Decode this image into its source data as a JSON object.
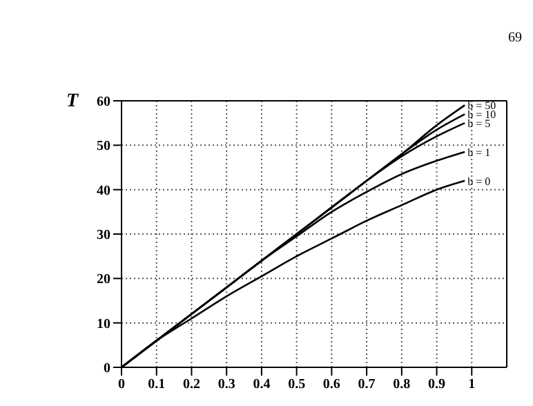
{
  "chart_data": {
    "type": "line",
    "ylabel": "T",
    "annotations": [
      "69"
    ],
    "x": [
      0,
      0.1,
      0.2,
      0.3,
      0.4,
      0.5,
      0.6,
      0.7,
      0.8,
      0.9,
      0.98
    ],
    "series": [
      {
        "name": "b = 50",
        "color": "#000000",
        "values": [
          0,
          6,
          12,
          18,
          24,
          30,
          36,
          42,
          48,
          54.5,
          59
        ]
      },
      {
        "name": "b = 10",
        "color": "#000000",
        "values": [
          0,
          6,
          12,
          18,
          24,
          30,
          36,
          42,
          48,
          53.5,
          57
        ]
      },
      {
        "name": "b = 5",
        "color": "#000000",
        "values": [
          0,
          6,
          12,
          18,
          24,
          30,
          36,
          42,
          47.5,
          52,
          55
        ]
      },
      {
        "name": "b = 1",
        "color": "#000000",
        "values": [
          0,
          6,
          12,
          18,
          24,
          29.5,
          35,
          39.5,
          43.5,
          46.5,
          48.5
        ]
      },
      {
        "name": "b = 0",
        "color": "#000000",
        "values": [
          0,
          6,
          11,
          16,
          20.5,
          25,
          29,
          33,
          36.5,
          40,
          42
        ]
      }
    ],
    "xlim": [
      0,
      1.1
    ],
    "xticks": [
      0,
      0.1,
      0.2,
      0.3,
      0.4,
      0.5,
      0.6,
      0.7,
      0.8,
      0.9,
      1
    ],
    "ylim": [
      0,
      60
    ],
    "yticks": [
      0,
      10,
      20,
      30,
      40,
      50,
      60
    ],
    "grid": true,
    "marker": "none",
    "line_style": "solid"
  }
}
